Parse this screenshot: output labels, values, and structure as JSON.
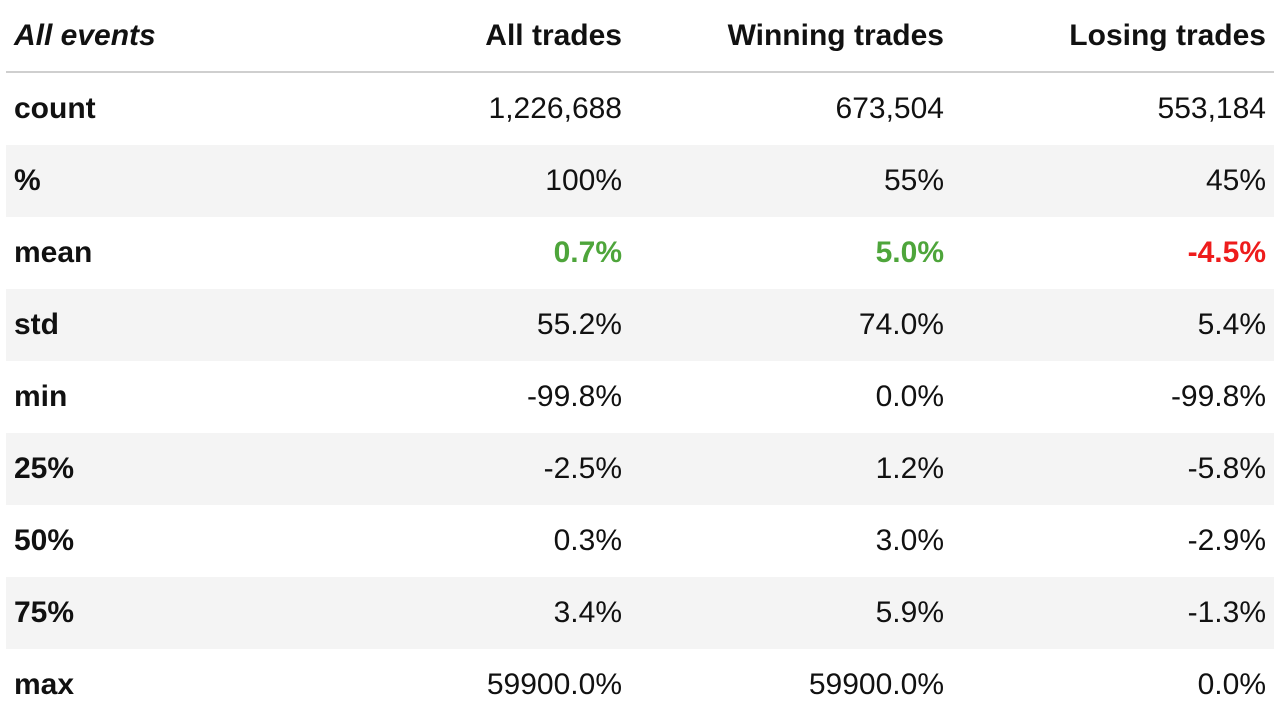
{
  "chart_data": {
    "type": "table",
    "corner_label": "All events",
    "columns": [
      "All trades",
      "Winning trades",
      "Losing trades"
    ],
    "rows": [
      {
        "label": "count",
        "values": [
          "1,226,688",
          "673,504",
          "553,184"
        ],
        "styles": [
          "",
          "",
          ""
        ]
      },
      {
        "label": "%",
        "values": [
          "100%",
          "55%",
          "45%"
        ],
        "styles": [
          "",
          "",
          ""
        ]
      },
      {
        "label": "mean",
        "values": [
          "0.7%",
          "5.0%",
          "-4.5%"
        ],
        "styles": [
          "pos",
          "pos",
          "neg"
        ]
      },
      {
        "label": "std",
        "values": [
          "55.2%",
          "74.0%",
          "5.4%"
        ],
        "styles": [
          "",
          "",
          ""
        ]
      },
      {
        "label": "min",
        "values": [
          "-99.8%",
          "0.0%",
          "-99.8%"
        ],
        "styles": [
          "",
          "",
          ""
        ]
      },
      {
        "label": "25%",
        "values": [
          "-2.5%",
          "1.2%",
          "-5.8%"
        ],
        "styles": [
          "",
          "",
          ""
        ]
      },
      {
        "label": "50%",
        "values": [
          "0.3%",
          "3.0%",
          "-2.9%"
        ],
        "styles": [
          "",
          "",
          ""
        ]
      },
      {
        "label": "75%",
        "values": [
          "3.4%",
          "5.9%",
          "-1.3%"
        ],
        "styles": [
          "",
          "",
          ""
        ]
      },
      {
        "label": "max",
        "values": [
          "59900.0%",
          "59900.0%",
          "0.0%"
        ],
        "styles": [
          "",
          "",
          ""
        ]
      }
    ],
    "colors": {
      "positive": "#4ea53b",
      "negative": "#ee1c1c",
      "shaded_row": "#f4f4f4",
      "header_rule": "#cfcfcf"
    }
  }
}
